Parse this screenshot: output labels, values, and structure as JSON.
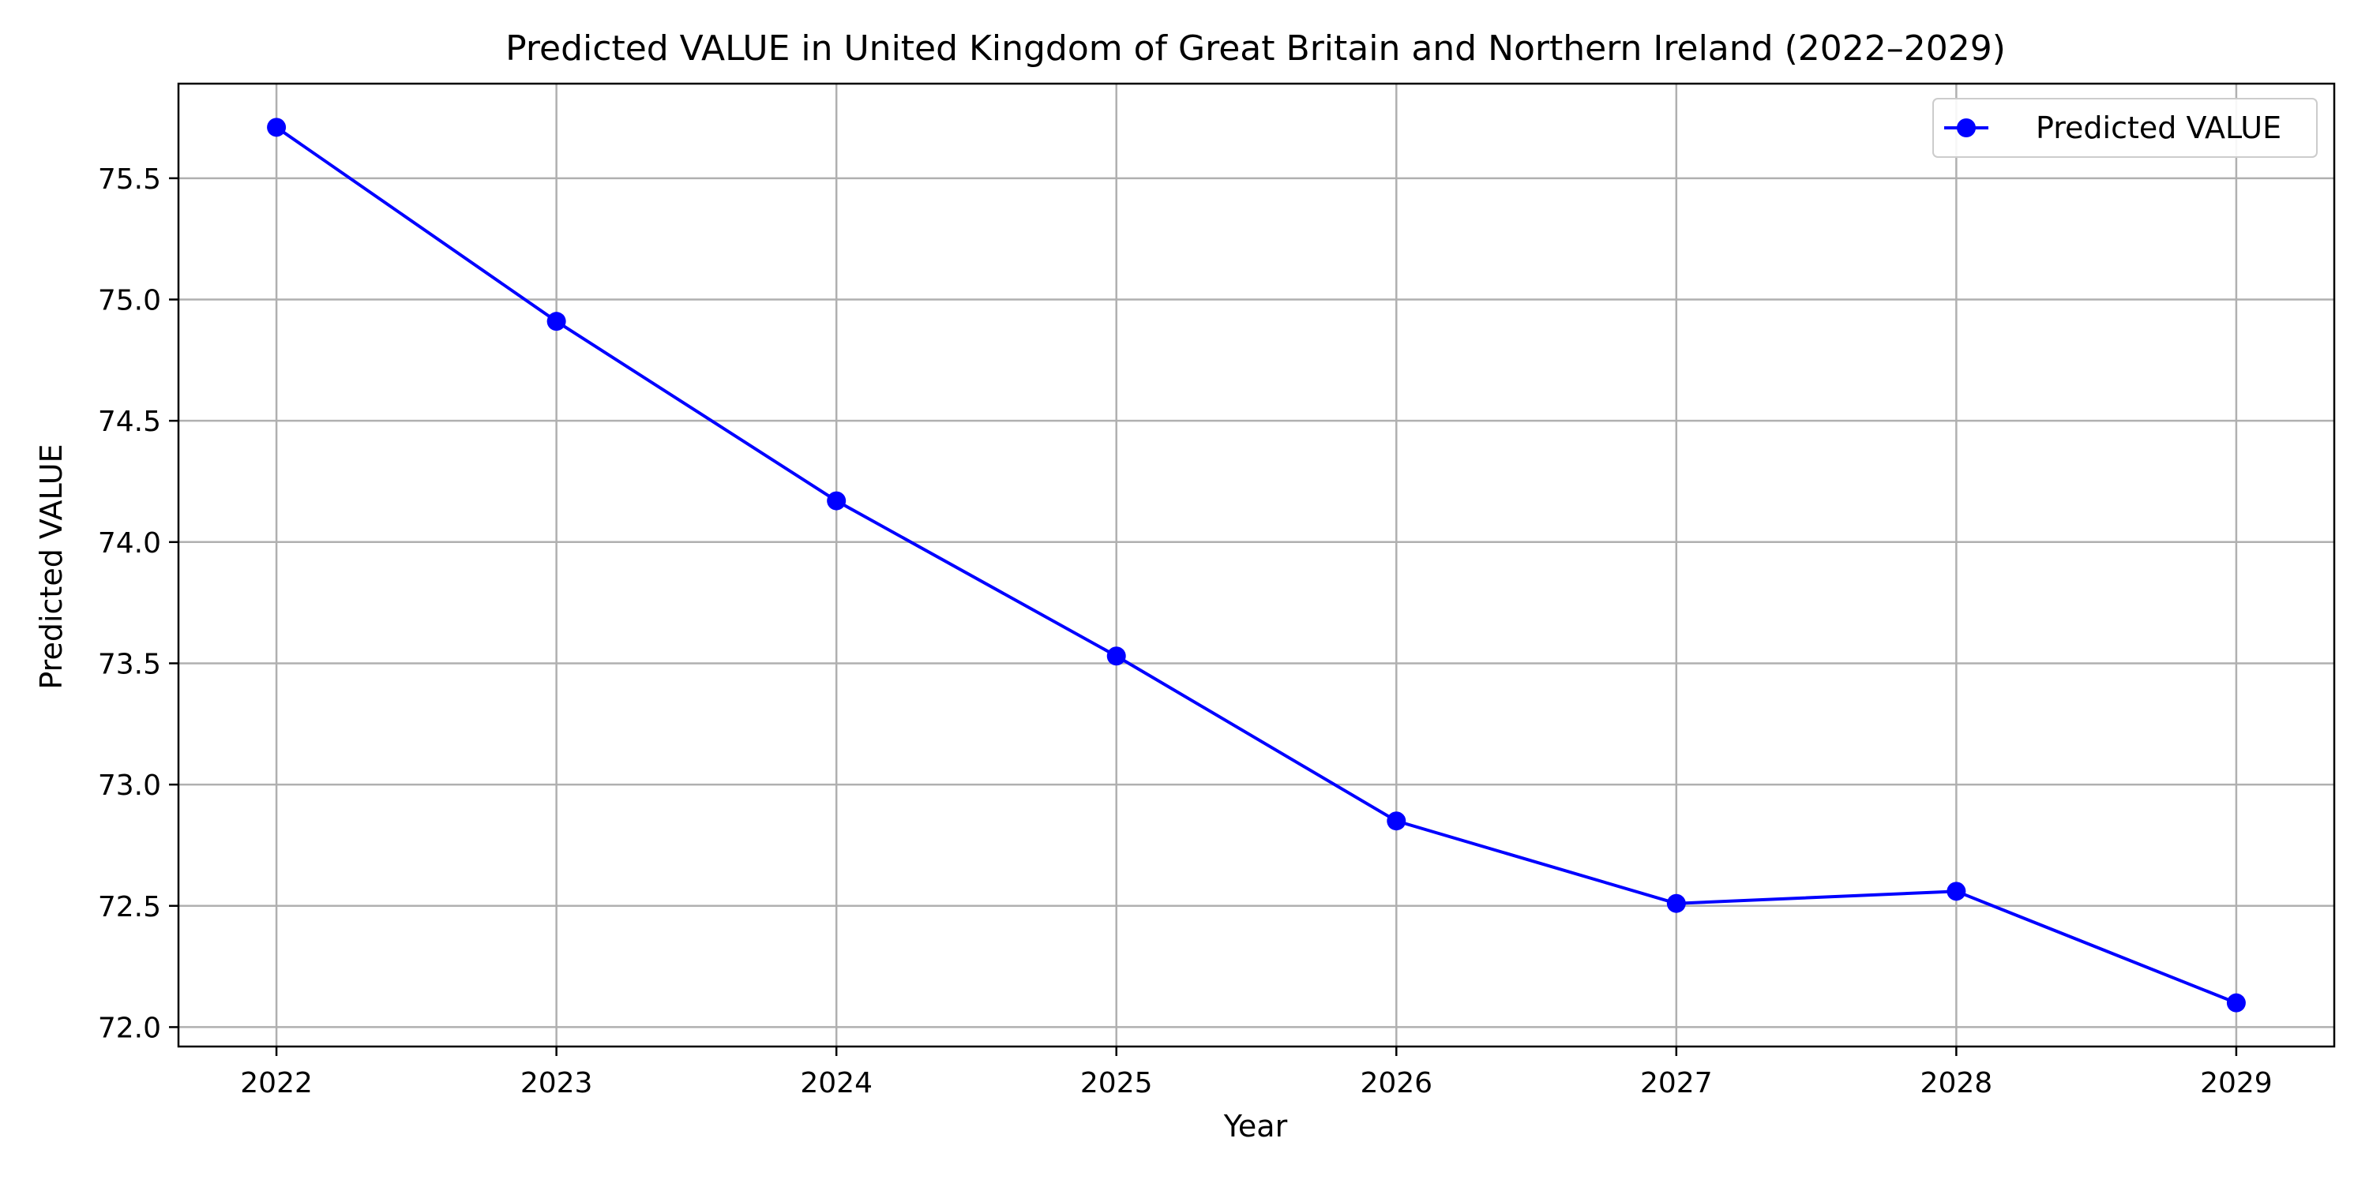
{
  "chart_data": {
    "type": "line",
    "title": "Predicted VALUE in United Kingdom of Great Britain and Northern Ireland (2022–2029)",
    "xlabel": "Year",
    "ylabel": "Predicted VALUE",
    "x": [
      "2022",
      "2023",
      "2024",
      "2025",
      "2026",
      "2027",
      "2028",
      "2029"
    ],
    "series": [
      {
        "name": "Predicted VALUE",
        "values": [
          75.71,
          74.91,
          74.17,
          73.53,
          72.85,
          72.51,
          72.56,
          72.1
        ],
        "color": "#0000ff",
        "marker": "circle"
      }
    ],
    "xlim": [
      2021.65,
      2029.35
    ],
    "ylim": [
      71.92,
      75.89
    ],
    "yticks": [
      "72.0",
      "72.5",
      "73.0",
      "73.5",
      "74.0",
      "74.5",
      "75.0",
      "75.5"
    ],
    "grid": true,
    "grid_color": "#b0b0b0",
    "legend_position": "top-right"
  }
}
